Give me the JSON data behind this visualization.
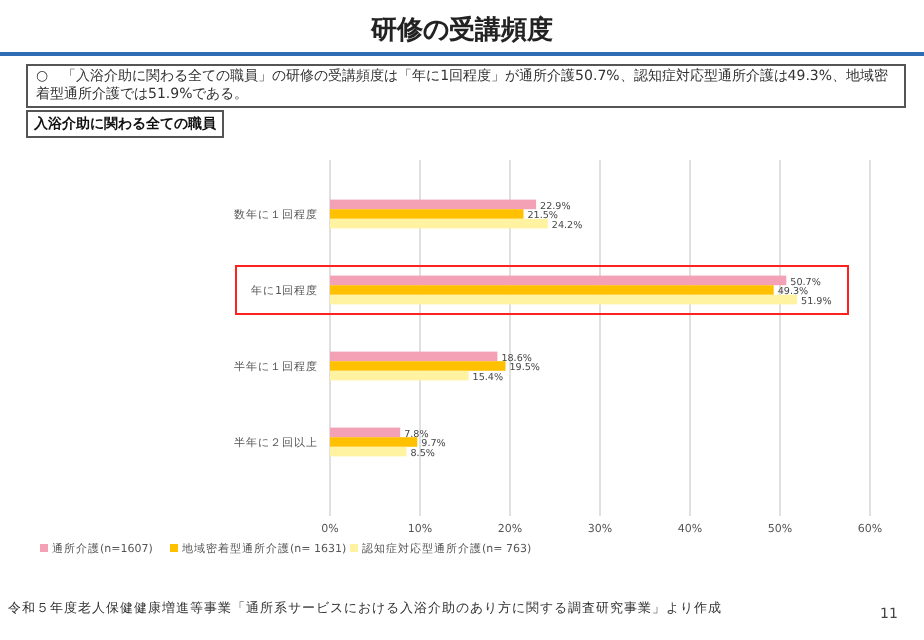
{
  "chart_data": {
    "type": "bar",
    "orientation": "horizontal",
    "title": "研修の受講頻度",
    "subtitle": "○　「入浴介助に関わる全ての職員」の研修の受講頻度は「年に1回程度」が通所介護50.7%、認知症対応型通所介護は49.3%、地域密着型通所介護では51.9%である。",
    "annotations": [
      "入浴介助に関わる全ての職員",
      "令和５年度老人保健健康増進等事業「通所系サービスにおける入浴介助のあり方に関する調査研究事業」より作成",
      "11"
    ],
    "categories": [
      "数年に１回程度",
      "年に1回程度",
      "半年に１回程度",
      "半年に２回以上"
    ],
    "series": [
      {
        "name": "通所介護(n=1607)",
        "color": "#f4a0b5",
        "values": [
          22.9,
          50.7,
          18.6,
          7.8
        ],
        "value_labels": [
          "22.9%",
          "50.7%",
          "18.6%",
          "7.8%"
        ]
      },
      {
        "name": "地域密着型通所介護(n= 1631)",
        "color": "#ffc000",
        "values": [
          21.5,
          49.3,
          19.5,
          9.7
        ],
        "value_labels": [
          "21.5%",
          "49.3%",
          "19.5%",
          "9.7%"
        ]
      },
      {
        "name": "認知症対応型通所介護(n= 763)",
        "color": "#fff2a0",
        "values": [
          24.2,
          51.9,
          15.4,
          8.5
        ],
        "value_labels": [
          "24.2%",
          "51.9%",
          "15.4%",
          "8.5%"
        ]
      }
    ],
    "xlim": [
      0,
      60
    ],
    "xticks": [
      {
        "value": 0,
        "label": "0%"
      },
      {
        "value": 10,
        "label": "10%"
      },
      {
        "value": 20,
        "label": "20%"
      },
      {
        "value": 30,
        "label": "30%"
      },
      {
        "value": 40,
        "label": "40%"
      },
      {
        "value": 50,
        "label": "50%"
      },
      {
        "value": 60,
        "label": "60%"
      }
    ],
    "grid": "x",
    "legend": "bottom"
  }
}
